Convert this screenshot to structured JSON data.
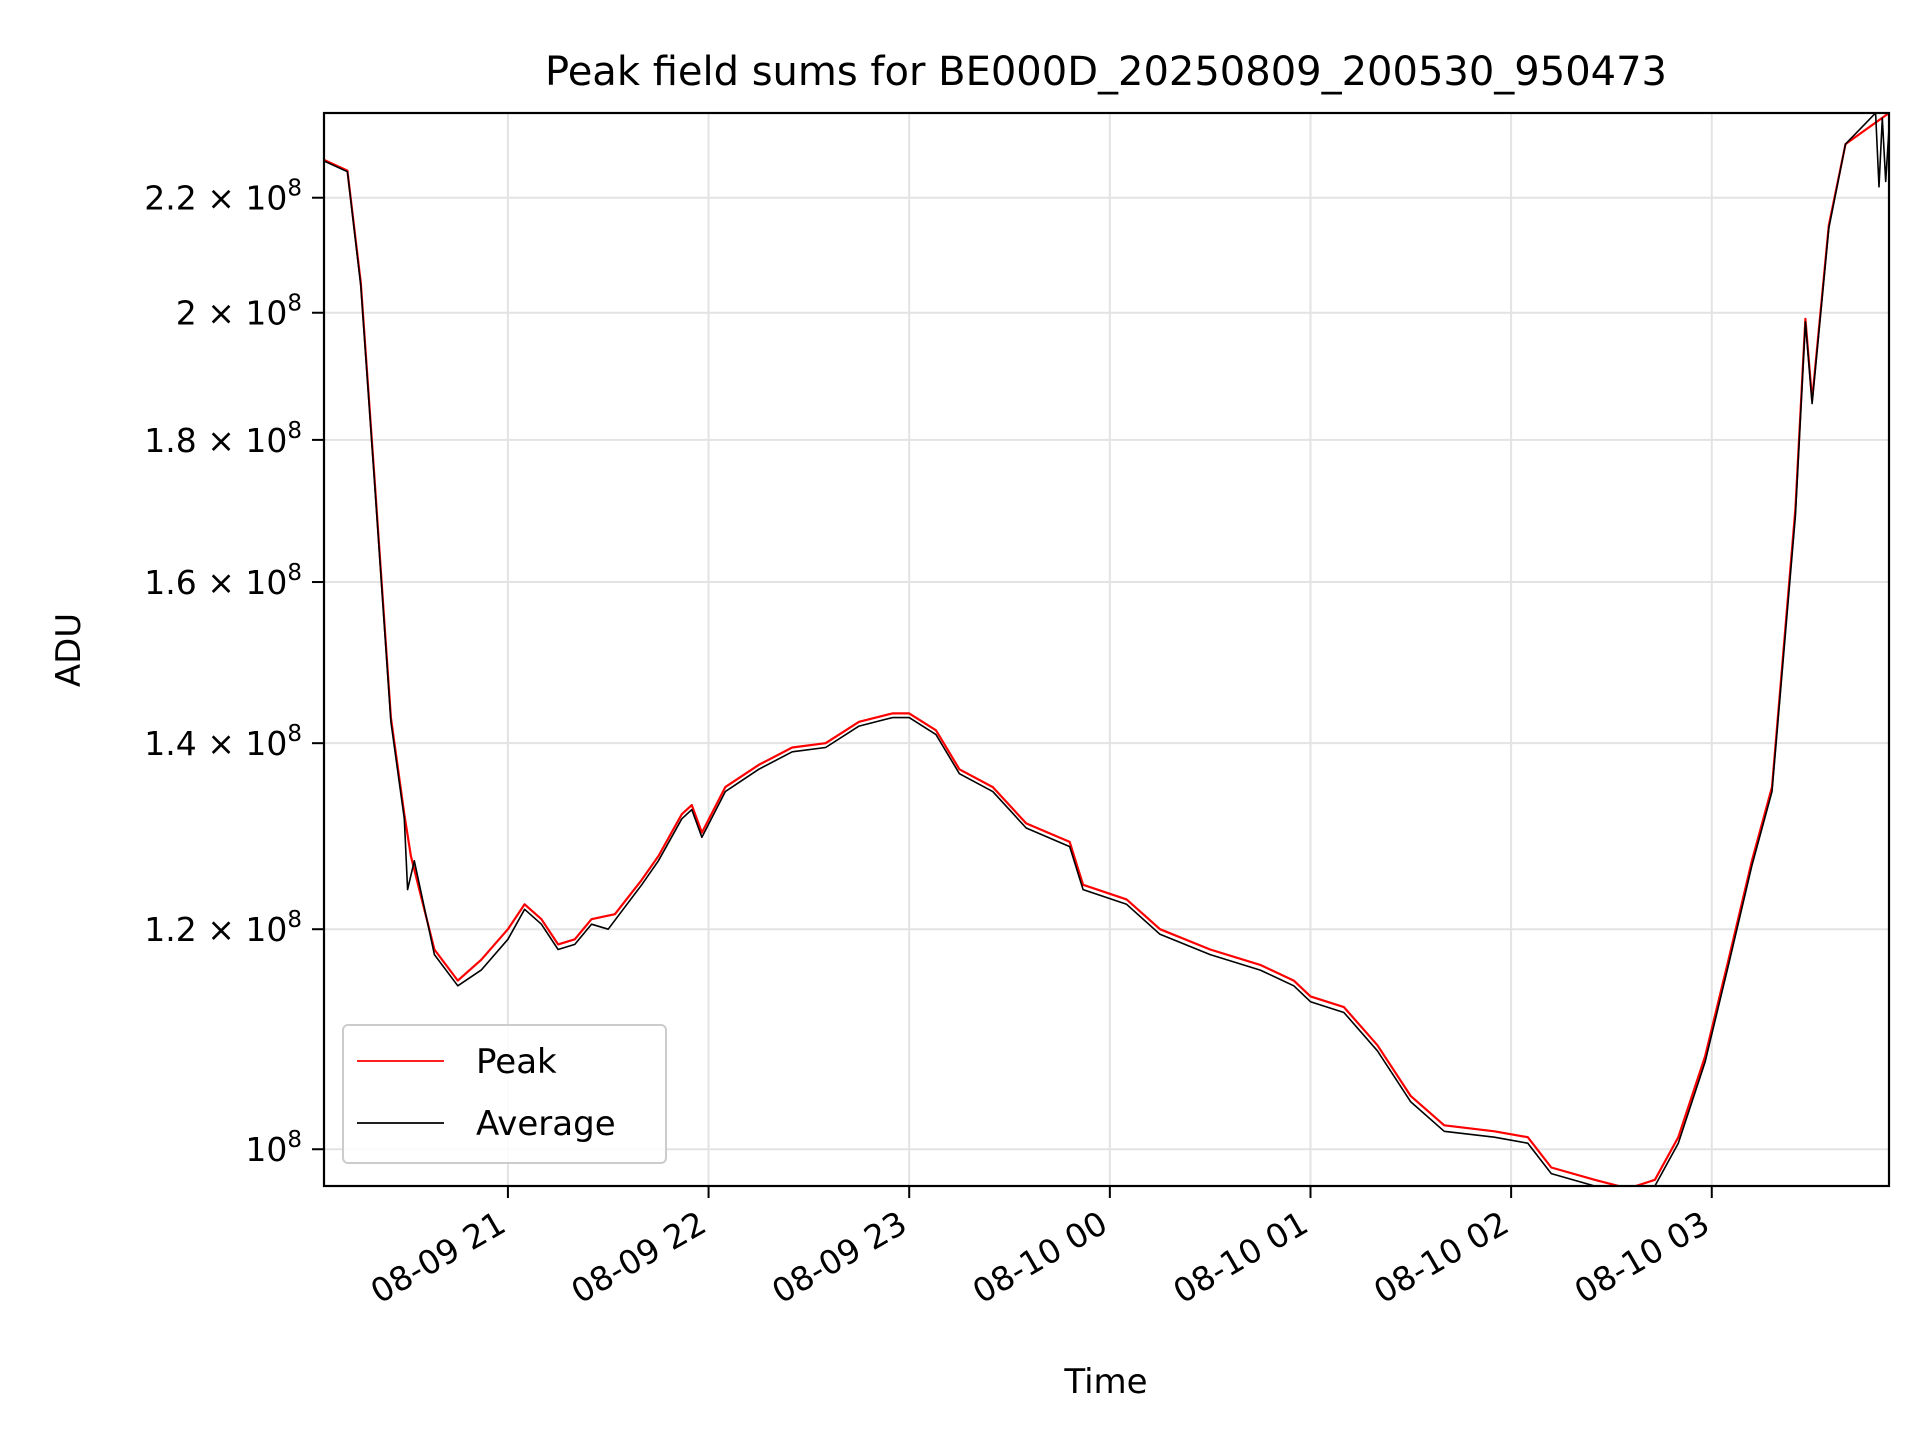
{
  "chart_data": {
    "type": "line",
    "title": "Peak field sums for BE000D_20250809_200530_950473",
    "xlabel": "Time",
    "ylabel": "ADU",
    "y_scale": "log",
    "grid": true,
    "legend_position": "lower-left",
    "x_axis": {
      "type": "datetime",
      "range": [
        "2025-08-09 20:05",
        "2025-08-10 03:53"
      ],
      "ticks": [
        "2025-08-09 21:00",
        "2025-08-09 22:00",
        "2025-08-09 23:00",
        "2025-08-10 00:00",
        "2025-08-10 01:00",
        "2025-08-10 02:00",
        "2025-08-10 03:00"
      ],
      "tick_labels": [
        "08-09 21",
        "08-09 22",
        "08-09 23",
        "08-10 00",
        "08-10 01",
        "08-10 02",
        "08-10 03"
      ]
    },
    "y_axis": {
      "range": [
        97000000,
        236000000
      ],
      "ticks": [
        100000000,
        120000000,
        140000000,
        160000000,
        180000000,
        200000000,
        220000000
      ],
      "tick_labels": [
        {
          "mantissa": "",
          "base": "10",
          "exp": "8"
        },
        {
          "mantissa": "1.2",
          "base": "10",
          "exp": "8"
        },
        {
          "mantissa": "1.4",
          "base": "10",
          "exp": "8"
        },
        {
          "mantissa": "1.6",
          "base": "10",
          "exp": "8"
        },
        {
          "mantissa": "1.8",
          "base": "10",
          "exp": "8"
        },
        {
          "mantissa": "2",
          "base": "10",
          "exp": "8"
        },
        {
          "mantissa": "2.2",
          "base": "10",
          "exp": "8"
        }
      ]
    },
    "series": [
      {
        "name": "Peak",
        "color": "#ff0000",
        "points": [
          [
            "2025-08-09 20:05",
            227000000.0
          ],
          [
            "2025-08-09 20:12",
            225000000.0
          ],
          [
            "2025-08-09 20:16",
            205000000.0
          ],
          [
            "2025-08-09 20:20",
            175000000.0
          ],
          [
            "2025-08-09 20:25",
            143000000.0
          ],
          [
            "2025-08-09 20:29",
            132000000.0
          ],
          [
            "2025-08-09 20:31",
            127500000.0
          ],
          [
            "2025-08-09 20:38",
            118000000.0
          ],
          [
            "2025-08-09 20:45",
            115000000.0
          ],
          [
            "2025-08-09 20:52",
            117000000.0
          ],
          [
            "2025-08-09 21:00",
            120000000.0
          ],
          [
            "2025-08-09 21:05",
            122500000.0
          ],
          [
            "2025-08-09 21:10",
            121000000.0
          ],
          [
            "2025-08-09 21:15",
            118500000.0
          ],
          [
            "2025-08-09 21:20",
            119000000.0
          ],
          [
            "2025-08-09 21:25",
            121000000.0
          ],
          [
            "2025-08-09 21:32",
            121500000.0
          ],
          [
            "2025-08-09 21:40",
            125000000.0
          ],
          [
            "2025-08-09 21:45",
            127500000.0
          ],
          [
            "2025-08-09 21:52",
            132000000.0
          ],
          [
            "2025-08-09 21:55",
            133000000.0
          ],
          [
            "2025-08-09 21:58",
            130000000.0
          ],
          [
            "2025-08-09 22:05",
            135000000.0
          ],
          [
            "2025-08-09 22:15",
            137500000.0
          ],
          [
            "2025-08-09 22:25",
            139500000.0
          ],
          [
            "2025-08-09 22:35",
            140000000.0
          ],
          [
            "2025-08-09 22:45",
            142500000.0
          ],
          [
            "2025-08-09 22:55",
            143500000.0
          ],
          [
            "2025-08-09 23:00",
            143500000.0
          ],
          [
            "2025-08-09 23:08",
            141500000.0
          ],
          [
            "2025-08-09 23:15",
            137000000.0
          ],
          [
            "2025-08-09 23:25",
            135000000.0
          ],
          [
            "2025-08-09 23:35",
            131000000.0
          ],
          [
            "2025-08-09 23:48",
            129000000.0
          ],
          [
            "2025-08-09 23:52",
            124500000.0
          ],
          [
            "2025-08-10 00:05",
            123000000.0
          ],
          [
            "2025-08-10 00:15",
            120000000.0
          ],
          [
            "2025-08-10 00:30",
            118000000.0
          ],
          [
            "2025-08-10 00:45",
            116500000.0
          ],
          [
            "2025-08-10 00:55",
            115000000.0
          ],
          [
            "2025-08-10 01:00",
            113500000.0
          ],
          [
            "2025-08-10 01:10",
            112500000.0
          ],
          [
            "2025-08-10 01:20",
            109000000.0
          ],
          [
            "2025-08-10 01:30",
            104500000.0
          ],
          [
            "2025-08-10 01:40",
            102000000.0
          ],
          [
            "2025-08-10 01:55",
            101500000.0
          ],
          [
            "2025-08-10 02:05",
            101000000.0
          ],
          [
            "2025-08-10 02:12",
            98500000.0
          ],
          [
            "2025-08-10 02:25",
            97500000.0
          ],
          [
            "2025-08-10 02:35",
            96800000.0
          ],
          [
            "2025-08-10 02:43",
            97500000.0
          ],
          [
            "2025-08-10 02:50",
            101000000.0
          ],
          [
            "2025-08-10 02:58",
            108000000.0
          ],
          [
            "2025-08-10 03:05",
            117000000.0
          ],
          [
            "2025-08-10 03:12",
            127000000.0
          ],
          [
            "2025-08-10 03:18",
            135000000.0
          ],
          [
            "2025-08-10 03:25",
            170000000.0
          ],
          [
            "2025-08-10 03:28",
            199000000.0
          ],
          [
            "2025-08-10 03:30",
            186000000.0
          ],
          [
            "2025-08-10 03:35",
            215000000.0
          ],
          [
            "2025-08-10 03:40",
            230000000.0
          ],
          [
            "2025-08-10 03:53",
            236000000.0
          ]
        ]
      },
      {
        "name": "Average",
        "color": "#000000",
        "points": [
          [
            "2025-08-09 20:05",
            226800000.0
          ],
          [
            "2025-08-09 20:12",
            224800000.0
          ],
          [
            "2025-08-09 20:16",
            204500000.0
          ],
          [
            "2025-08-09 20:20",
            174500000.0
          ],
          [
            "2025-08-09 20:25",
            142500000.0
          ],
          [
            "2025-08-09 20:29",
            131500000.0
          ],
          [
            "2025-08-09 20:30",
            124000000.0
          ],
          [
            "2025-08-09 20:32",
            127000000.0
          ],
          [
            "2025-08-09 20:38",
            117500000.0
          ],
          [
            "2025-08-09 20:45",
            114500000.0
          ],
          [
            "2025-08-09 20:52",
            116000000.0
          ],
          [
            "2025-08-09 21:00",
            119000000.0
          ],
          [
            "2025-08-09 21:05",
            122000000.0
          ],
          [
            "2025-08-09 21:10",
            120500000.0
          ],
          [
            "2025-08-09 21:15",
            118000000.0
          ],
          [
            "2025-08-09 21:20",
            118500000.0
          ],
          [
            "2025-08-09 21:25",
            120500000.0
          ],
          [
            "2025-08-09 21:30",
            120000000.0
          ],
          [
            "2025-08-09 21:40",
            124500000.0
          ],
          [
            "2025-08-09 21:45",
            127000000.0
          ],
          [
            "2025-08-09 21:52",
            131500000.0
          ],
          [
            "2025-08-09 21:55",
            132500000.0
          ],
          [
            "2025-08-09 21:58",
            129500000.0
          ],
          [
            "2025-08-09 22:05",
            134500000.0
          ],
          [
            "2025-08-09 22:15",
            137000000.0
          ],
          [
            "2025-08-09 22:25",
            139000000.0
          ],
          [
            "2025-08-09 22:35",
            139500000.0
          ],
          [
            "2025-08-09 22:45",
            142000000.0
          ],
          [
            "2025-08-09 22:55",
            143000000.0
          ],
          [
            "2025-08-09 23:00",
            143000000.0
          ],
          [
            "2025-08-09 23:08",
            141000000.0
          ],
          [
            "2025-08-09 23:15",
            136500000.0
          ],
          [
            "2025-08-09 23:25",
            134500000.0
          ],
          [
            "2025-08-09 23:35",
            130500000.0
          ],
          [
            "2025-08-09 23:48",
            128500000.0
          ],
          [
            "2025-08-09 23:52",
            124000000.0
          ],
          [
            "2025-08-10 00:05",
            122500000.0
          ],
          [
            "2025-08-10 00:15",
            119500000.0
          ],
          [
            "2025-08-10 00:30",
            117500000.0
          ],
          [
            "2025-08-10 00:45",
            116000000.0
          ],
          [
            "2025-08-10 00:55",
            114500000.0
          ],
          [
            "2025-08-10 01:00",
            113000000.0
          ],
          [
            "2025-08-10 01:10",
            112000000.0
          ],
          [
            "2025-08-10 01:20",
            108500000.0
          ],
          [
            "2025-08-10 01:30",
            104000000.0
          ],
          [
            "2025-08-10 01:40",
            101500000.0
          ],
          [
            "2025-08-10 01:55",
            101000000.0
          ],
          [
            "2025-08-10 02:05",
            100500000.0
          ],
          [
            "2025-08-10 02:12",
            98000000.0
          ],
          [
            "2025-08-10 02:25",
            97000000.0
          ],
          [
            "2025-08-10 02:35",
            96200000.0
          ],
          [
            "2025-08-10 02:43",
            97000000.0
          ],
          [
            "2025-08-10 02:50",
            100500000.0
          ],
          [
            "2025-08-10 02:58",
            107500000.0
          ],
          [
            "2025-08-10 03:05",
            116500000.0
          ],
          [
            "2025-08-10 03:12",
            126500000.0
          ],
          [
            "2025-08-10 03:18",
            134500000.0
          ],
          [
            "2025-08-10 03:25",
            169000000.0
          ],
          [
            "2025-08-10 03:28",
            198500000.0
          ],
          [
            "2025-08-10 03:30",
            185500000.0
          ],
          [
            "2025-08-10 03:35",
            214500000.0
          ],
          [
            "2025-08-10 03:40",
            230000000.0
          ],
          [
            "2025-08-10 03:49",
            236000000.0
          ],
          [
            "2025-08-10 03:50",
            222000000.0
          ],
          [
            "2025-08-10 03:51",
            235000000.0
          ],
          [
            "2025-08-10 03:52",
            223000000.0
          ],
          [
            "2025-08-10 03:53",
            233000000.0
          ]
        ]
      }
    ]
  }
}
